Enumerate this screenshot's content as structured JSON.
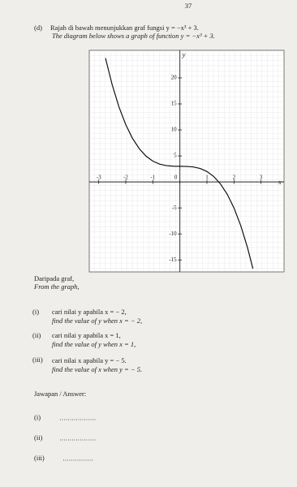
{
  "page_number": "37",
  "question": {
    "label": "(d)",
    "malay": "Rajah di bawah menunjukkan graf fungsi y = −x³ + 3.",
    "english": "The diagram below shows a graph of function y = −x³ + 3."
  },
  "graph": {
    "x_label": "x",
    "y_label": "y",
    "xlim": [
      -3.35,
      3.85
    ],
    "ylim": [
      -17.3,
      25.3
    ],
    "xticks": [
      -3,
      -2,
      -1,
      0,
      1,
      2,
      3
    ],
    "yticks": [
      -15,
      -10,
      -5,
      5,
      10,
      15,
      20
    ],
    "curve": {
      "x": [
        -2.75,
        -2.5,
        -2.25,
        -2,
        -1.75,
        -1.5,
        -1.25,
        -1,
        -0.75,
        -0.5,
        -0.25,
        0,
        0.25,
        0.5,
        0.75,
        1,
        1.25,
        1.5,
        1.75,
        2,
        2.25,
        2.5,
        2.7
      ],
      "y": [
        23.8,
        18.63,
        14.39,
        11,
        8.36,
        6.38,
        4.95,
        4,
        3.42,
        3.13,
        3.02,
        3,
        2.98,
        2.88,
        2.58,
        2,
        1.05,
        -0.38,
        -2.36,
        -5,
        -8.39,
        -12.63,
        -16.68
      ]
    }
  },
  "intro": {
    "malay": "Daripada graf,",
    "english": "From the graph,"
  },
  "parts": [
    {
      "label": "(i)",
      "malay": "cari nilai y apabila x = − 2,",
      "english": "find the value of y when x = − 2,"
    },
    {
      "label": "(ii)",
      "malay": "cari nilai y apabila x = 1,",
      "english": "find the value of y when x = 1,"
    },
    {
      "label": "(iii)",
      "malay": "cari nilai x apabila y = − 5.",
      "english": "find the value of x when y = − 5."
    }
  ],
  "answer": {
    "heading": "Jawapan / Answer:",
    "labels": [
      "(i)",
      "(ii)",
      "(iii)"
    ]
  }
}
